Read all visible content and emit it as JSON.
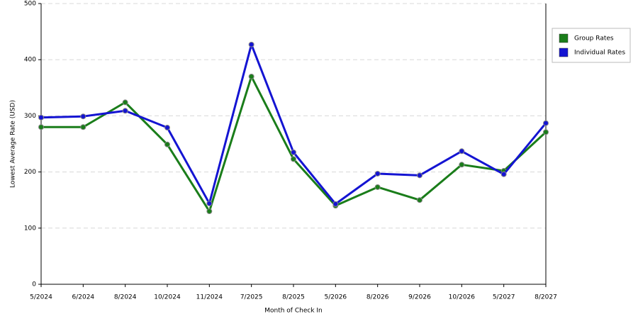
{
  "chart_data": {
    "type": "line",
    "x_label": "Month of Check In",
    "y_label": "Lowest Average Rate (USD)",
    "categories": [
      "5/2024",
      "6/2024",
      "8/2024",
      "10/2024",
      "11/2024",
      "7/2025",
      "8/2025",
      "5/2026",
      "8/2026",
      "9/2026",
      "10/2026",
      "5/2027",
      "8/2027"
    ],
    "series": [
      {
        "name": "Group Rates",
        "color": "#1a7d1a",
        "values": [
          280,
          280,
          324,
          249,
          130,
          370,
          223,
          140,
          173,
          150,
          213,
          202,
          271
        ]
      },
      {
        "name": "Individual Rates",
        "color": "#1414d2",
        "values": [
          297,
          299,
          309,
          279,
          144,
          427,
          235,
          143,
          197,
          194,
          237,
          196,
          287
        ]
      }
    ],
    "ylim": [
      0,
      500
    ],
    "yticks": [
      0,
      100,
      200,
      300,
      400,
      500
    ],
    "grid": true,
    "legend": "right"
  }
}
